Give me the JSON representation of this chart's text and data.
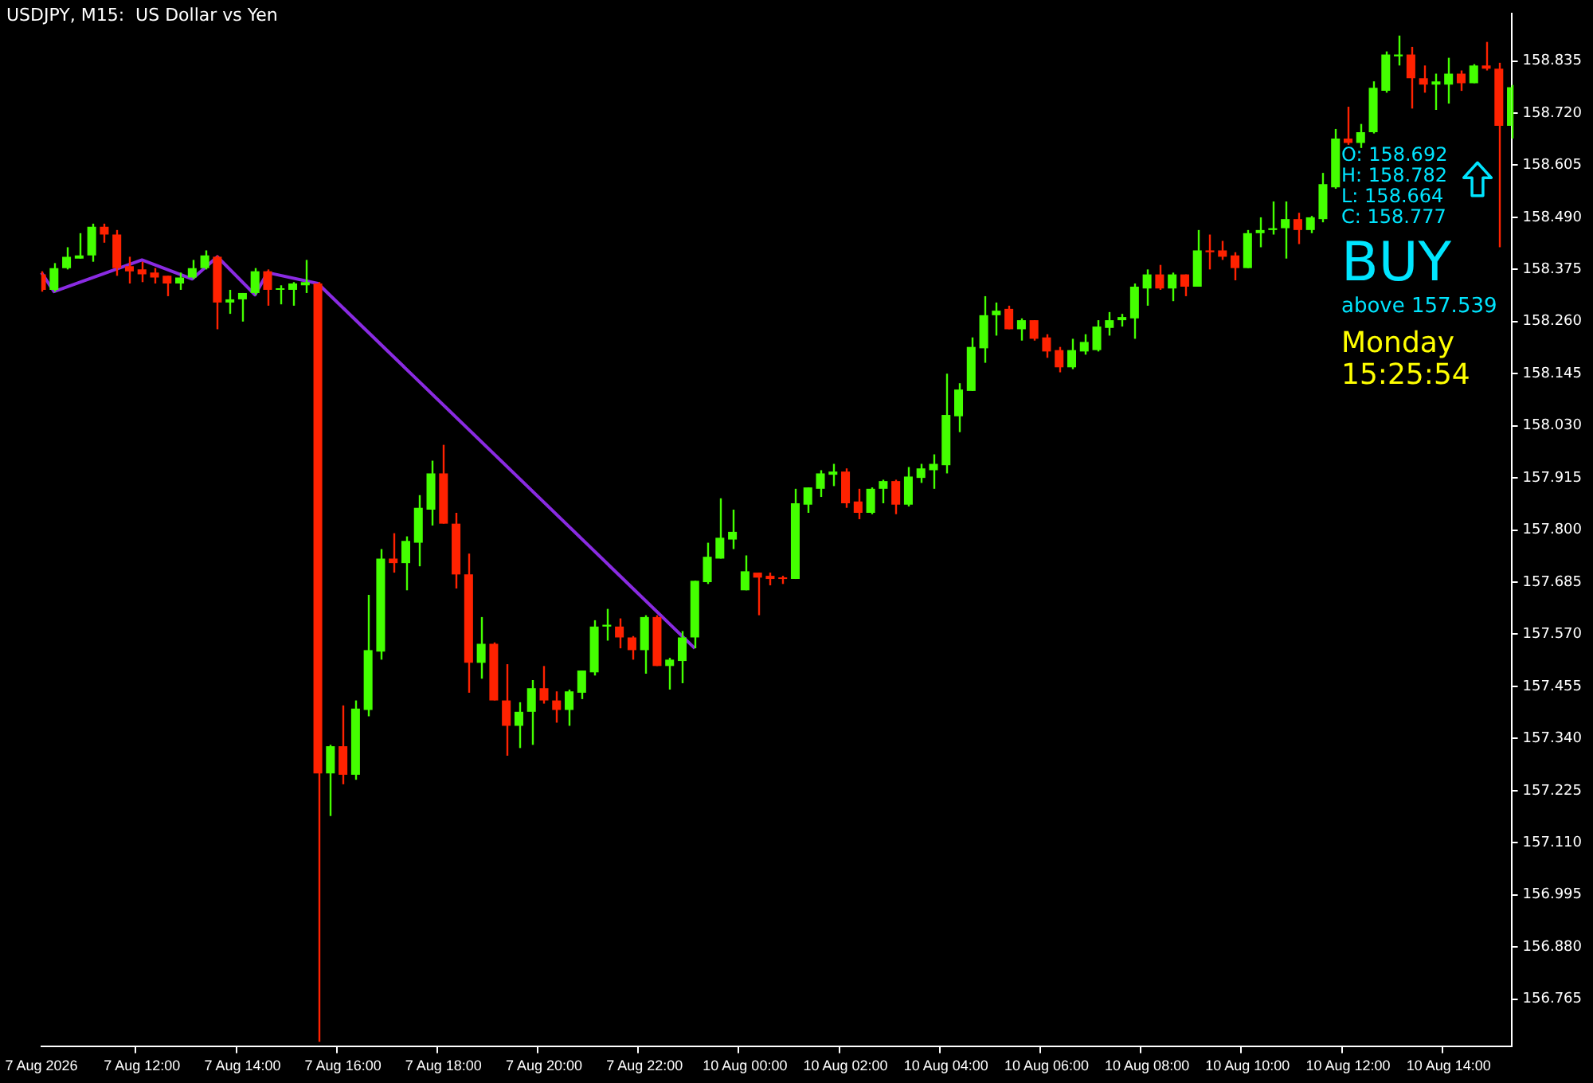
{
  "chart_data": {
    "type": "candlestick",
    "title": "USDJPY, M15:  US Dollar vs Yen",
    "categories": [
      "7 Aug 2026",
      null,
      null,
      null,
      null,
      null,
      null,
      null,
      "7 Aug 12:00",
      null,
      null,
      null,
      null,
      null,
      null,
      null,
      "7 Aug 14:00",
      null,
      null,
      null,
      null,
      null,
      null,
      null,
      "7 Aug 16:00",
      null,
      null,
      null,
      null,
      null,
      null,
      null,
      "7 Aug 18:00",
      null,
      null,
      null,
      null,
      null,
      null,
      null,
      "7 Aug 20:00",
      null,
      null,
      null,
      null,
      null,
      null,
      null,
      "7 Aug 22:00",
      null,
      null,
      null,
      null,
      null,
      null,
      null,
      "10 Aug 00:00",
      null,
      null,
      null,
      null,
      null,
      null,
      null,
      "10 Aug 02:00",
      null,
      null,
      null,
      null,
      null,
      null,
      null,
      "10 Aug 04:00",
      null,
      null,
      null,
      null,
      null,
      null,
      null,
      "10 Aug 06:00",
      null,
      null,
      null,
      null,
      null,
      null,
      null,
      "10 Aug 08:00",
      null,
      null,
      null,
      null,
      null,
      null,
      null,
      "10 Aug 10:00",
      null,
      null,
      null,
      null,
      null,
      null,
      null,
      "10 Aug 12:00",
      null,
      null,
      null,
      null,
      null,
      null,
      null,
      "10 Aug 14:00",
      null,
      null,
      null,
      null,
      null
    ],
    "ohlc": [
      [
        158.364,
        158.371,
        158.326,
        158.33
      ],
      [
        158.33,
        158.389,
        158.326,
        158.378
      ],
      [
        158.378,
        158.424,
        158.375,
        158.403
      ],
      [
        158.399,
        158.455,
        158.399,
        158.406
      ],
      [
        158.406,
        158.476,
        158.392,
        158.469
      ],
      [
        158.469,
        158.476,
        158.434,
        158.452
      ],
      [
        158.452,
        158.462,
        158.361,
        158.378
      ],
      [
        158.382,
        158.403,
        158.344,
        158.371
      ],
      [
        158.375,
        158.392,
        158.347,
        158.364
      ],
      [
        158.368,
        158.378,
        158.344,
        158.357
      ],
      [
        158.361,
        158.361,
        158.316,
        158.344
      ],
      [
        158.344,
        158.368,
        158.33,
        158.357
      ],
      [
        158.357,
        158.396,
        158.354,
        158.378
      ],
      [
        158.378,
        158.417,
        158.375,
        158.406
      ],
      [
        158.403,
        158.406,
        158.243,
        158.302
      ],
      [
        158.302,
        158.33,
        158.277,
        158.309
      ],
      [
        158.309,
        158.323,
        158.26,
        158.323
      ],
      [
        158.323,
        158.378,
        158.319,
        158.371
      ],
      [
        158.371,
        158.375,
        158.295,
        158.33
      ],
      [
        158.33,
        158.34,
        158.298,
        158.333
      ],
      [
        158.33,
        158.347,
        158.295,
        158.344
      ],
      [
        158.34,
        158.396,
        158.323,
        158.347
      ],
      [
        158.344,
        158.347,
        156.671,
        157.263
      ],
      [
        157.263,
        157.326,
        157.169,
        157.323
      ],
      [
        157.323,
        157.413,
        157.239,
        157.26
      ],
      [
        157.26,
        157.424,
        157.249,
        157.406
      ],
      [
        157.403,
        157.657,
        157.389,
        157.535
      ],
      [
        157.532,
        157.758,
        157.514,
        157.737
      ],
      [
        157.737,
        157.793,
        157.706,
        157.727
      ],
      [
        157.727,
        157.786,
        157.667,
        157.776
      ],
      [
        157.772,
        157.877,
        157.72,
        157.849
      ],
      [
        157.845,
        157.953,
        157.81,
        157.925
      ],
      [
        157.925,
        157.988,
        157.814,
        157.814
      ],
      [
        157.814,
        157.838,
        157.671,
        157.702
      ],
      [
        157.702,
        157.748,
        157.441,
        157.507
      ],
      [
        157.507,
        157.608,
        157.472,
        157.549
      ],
      [
        157.549,
        157.552,
        157.424,
        157.424
      ],
      [
        157.424,
        157.504,
        157.302,
        157.368
      ],
      [
        157.368,
        157.42,
        157.319,
        157.399
      ],
      [
        157.399,
        157.469,
        157.326,
        157.451
      ],
      [
        157.451,
        157.5,
        157.417,
        157.424
      ],
      [
        157.424,
        157.444,
        157.375,
        157.403
      ],
      [
        157.403,
        157.448,
        157.368,
        157.444
      ],
      [
        157.441,
        157.49,
        157.427,
        157.49
      ],
      [
        157.486,
        157.601,
        157.479,
        157.587
      ],
      [
        157.587,
        157.626,
        157.556,
        157.591
      ],
      [
        157.587,
        157.605,
        157.539,
        157.563
      ],
      [
        157.563,
        157.566,
        157.514,
        157.535
      ],
      [
        157.535,
        157.612,
        157.483,
        157.608
      ],
      [
        157.608,
        157.612,
        157.5,
        157.5
      ],
      [
        157.5,
        157.518,
        157.448,
        157.514
      ],
      [
        157.511,
        157.577,
        157.462,
        157.563
      ],
      [
        157.563,
        157.688,
        157.539,
        157.688
      ],
      [
        157.685,
        157.772,
        157.681,
        157.741
      ],
      [
        157.737,
        157.87,
        157.737,
        157.783
      ],
      [
        157.779,
        157.845,
        157.758,
        157.796
      ],
      [
        157.667,
        157.744,
        157.667,
        157.709
      ],
      [
        157.706,
        157.706,
        157.612,
        157.695
      ],
      [
        157.699,
        157.706,
        157.678,
        157.692
      ],
      [
        157.695,
        157.699,
        157.681,
        157.692
      ],
      [
        157.692,
        157.891,
        157.692,
        157.859
      ],
      [
        157.856,
        157.894,
        157.838,
        157.894
      ],
      [
        157.891,
        157.932,
        157.873,
        157.925
      ],
      [
        157.922,
        157.946,
        157.897,
        157.929
      ],
      [
        157.929,
        157.936,
        157.849,
        157.859
      ],
      [
        157.863,
        157.891,
        157.824,
        157.838
      ],
      [
        157.838,
        157.894,
        157.835,
        157.891
      ],
      [
        157.891,
        157.911,
        157.859,
        157.908
      ],
      [
        157.908,
        157.911,
        157.835,
        157.856
      ],
      [
        157.856,
        157.939,
        157.852,
        157.918
      ],
      [
        157.915,
        157.946,
        157.904,
        157.936
      ],
      [
        157.932,
        157.967,
        157.891,
        157.946
      ],
      [
        157.943,
        158.145,
        157.925,
        158.054
      ],
      [
        158.051,
        158.124,
        158.016,
        158.11
      ],
      [
        158.107,
        158.225,
        158.107,
        158.204
      ],
      [
        158.201,
        158.316,
        158.169,
        158.274
      ],
      [
        158.274,
        158.302,
        158.229,
        158.284
      ],
      [
        158.288,
        158.295,
        158.243,
        158.243
      ],
      [
        158.243,
        158.267,
        158.218,
        158.263
      ],
      [
        158.263,
        158.263,
        158.218,
        158.222
      ],
      [
        158.225,
        158.232,
        158.18,
        158.194
      ],
      [
        158.197,
        158.204,
        158.148,
        158.159
      ],
      [
        158.159,
        158.222,
        158.155,
        158.197
      ],
      [
        158.194,
        158.232,
        158.187,
        158.215
      ],
      [
        158.197,
        158.263,
        158.194,
        158.249
      ],
      [
        158.246,
        158.281,
        158.229,
        158.263
      ],
      [
        158.263,
        158.277,
        158.249,
        158.27
      ],
      [
        158.267,
        158.344,
        158.222,
        158.337
      ],
      [
        158.333,
        158.375,
        158.295,
        158.364
      ],
      [
        158.364,
        158.385,
        158.33,
        158.333
      ],
      [
        158.333,
        158.368,
        158.305,
        158.364
      ],
      [
        158.364,
        158.364,
        158.316,
        158.337
      ],
      [
        158.337,
        158.462,
        158.337,
        158.417
      ],
      [
        158.417,
        158.452,
        158.375,
        158.413
      ],
      [
        158.417,
        158.438,
        158.396,
        158.403
      ],
      [
        158.406,
        158.413,
        158.351,
        158.378
      ],
      [
        158.378,
        158.462,
        158.378,
        158.455
      ],
      [
        158.455,
        158.49,
        158.424,
        158.462
      ],
      [
        158.462,
        158.525,
        158.452,
        158.466
      ],
      [
        158.466,
        158.525,
        158.399,
        158.486
      ],
      [
        158.486,
        158.5,
        158.431,
        158.462
      ],
      [
        158.462,
        158.493,
        158.455,
        158.49
      ],
      [
        158.486,
        158.588,
        158.479,
        158.563
      ],
      [
        158.556,
        158.685,
        158.553,
        158.664
      ],
      [
        158.664,
        158.734,
        158.65,
        158.654
      ],
      [
        158.654,
        158.696,
        158.643,
        158.678
      ],
      [
        158.678,
        158.79,
        158.675,
        158.776
      ],
      [
        158.769,
        158.856,
        158.765,
        158.849
      ],
      [
        158.845,
        158.891,
        158.825,
        158.849
      ],
      [
        158.849,
        158.866,
        158.73,
        158.797
      ],
      [
        158.797,
        158.825,
        158.765,
        158.783
      ],
      [
        158.783,
        158.807,
        158.727,
        158.79
      ],
      [
        158.783,
        158.842,
        158.741,
        158.807
      ],
      [
        158.807,
        158.814,
        158.769,
        158.786
      ],
      [
        158.786,
        158.828,
        158.786,
        158.825
      ],
      [
        158.825,
        158.877,
        158.814,
        158.818
      ],
      [
        158.818,
        158.831,
        158.424,
        158.692
      ],
      [
        158.692,
        158.782,
        158.664,
        158.777
      ]
    ],
    "colors": [
      "#ff2200",
      "#44ff00",
      "#44ff00",
      "#44ff00",
      "#44ff00",
      "#ff2200",
      "#ff2200",
      "#ff2200",
      "#ff2200",
      "#ff2200",
      "#ff2200",
      "#44ff00",
      "#44ff00",
      "#44ff00",
      "#ff2200",
      "#44ff00",
      "#44ff00",
      "#44ff00",
      "#ff2200",
      "#44ff00",
      "#44ff00",
      "#44ff00",
      "#ff2200",
      "#44ff00",
      "#ff2200",
      "#44ff00",
      "#44ff00",
      "#44ff00",
      "#ff2200",
      "#44ff00",
      "#44ff00",
      "#44ff00",
      "#ff2200",
      "#ff2200",
      "#ff2200",
      "#44ff00",
      "#ff2200",
      "#ff2200",
      "#44ff00",
      "#44ff00",
      "#ff2200",
      "#ff2200",
      "#44ff00",
      "#44ff00",
      "#44ff00",
      "#44ff00",
      "#ff2200",
      "#ff2200",
      "#44ff00",
      "#ff2200",
      "#44ff00",
      "#44ff00",
      "#44ff00",
      "#44ff00",
      "#44ff00",
      "#44ff00",
      "#44ff00",
      "#ff2200",
      "#ff2200",
      "#ff2200",
      "#44ff00",
      "#44ff00",
      "#44ff00",
      "#44ff00",
      "#ff2200",
      "#ff2200",
      "#44ff00",
      "#44ff00",
      "#ff2200",
      "#44ff00",
      "#44ff00",
      "#44ff00",
      "#44ff00",
      "#44ff00",
      "#44ff00",
      "#44ff00",
      "#44ff00",
      "#ff2200",
      "#44ff00",
      "#ff2200",
      "#ff2200",
      "#ff2200",
      "#44ff00",
      "#44ff00",
      "#44ff00",
      "#44ff00",
      "#44ff00",
      "#44ff00",
      "#44ff00",
      "#ff2200",
      "#44ff00",
      "#ff2200",
      "#44ff00",
      "#ff2200",
      "#ff2200",
      "#ff2200",
      "#44ff00",
      "#44ff00",
      "#44ff00",
      "#44ff00",
      "#ff2200",
      "#44ff00",
      "#44ff00",
      "#44ff00",
      "#ff2200",
      "#44ff00",
      "#44ff00",
      "#44ff00",
      "#44ff00",
      "#ff2200",
      "#ff2200",
      "#44ff00",
      "#44ff00",
      "#ff2200",
      "#44ff00",
      "#ff2200",
      "#ff2200",
      "#44ff00"
    ],
    "series": [
      {
        "type": "line",
        "color": "#8a2be2",
        "values": [
          158.368,
          158.326,
          null,
          null,
          null,
          null,
          null,
          null,
          158.396,
          null,
          null,
          null,
          158.354,
          null,
          158.403,
          null,
          null,
          158.319,
          158.368,
          null,
          null,
          null,
          158.344,
          null,
          null,
          null,
          null,
          null,
          null,
          null,
          null,
          null,
          null,
          null,
          null,
          null,
          null,
          null,
          null,
          null,
          null,
          null,
          null,
          null,
          null,
          null,
          null,
          null,
          null,
          null,
          null,
          null,
          157.539,
          null,
          null,
          null,
          null,
          null,
          null,
          null,
          null,
          null,
          null,
          null,
          null,
          null,
          null,
          null,
          null,
          null,
          null,
          null,
          null,
          null,
          null,
          null,
          null,
          null,
          null,
          null,
          null,
          null,
          null,
          null,
          null,
          null,
          null,
          null,
          null,
          null,
          null,
          null,
          null,
          null,
          null,
          null,
          null,
          null,
          null,
          null,
          null,
          null,
          null,
          null,
          null,
          null,
          null,
          null,
          null,
          null,
          null,
          null,
          null,
          null,
          null,
          null,
          null,
          null
        ]
      }
    ],
    "ylim": [
      156.66,
      158.94
    ],
    "yticks": [
      156.765,
      {
        "value": 156.88,
        "label": "156.880"
      },
      156.995,
      {
        "value": 157.11,
        "label": "157.110"
      },
      157.225,
      {
        "value": 157.34,
        "label": "157.340"
      },
      157.455,
      {
        "value": 157.57,
        "label": "157.570"
      },
      157.685,
      {
        "value": 157.8,
        "label": "157.800"
      },
      157.915,
      {
        "value": 158.03,
        "label": "158.030"
      },
      158.145,
      {
        "value": 158.26,
        "label": "158.260"
      },
      158.375,
      {
        "value": 158.49,
        "label": "158.490"
      },
      158.605,
      {
        "value": 158.72,
        "label": "158.720"
      },
      158.835
    ],
    "grid": false,
    "legend": false,
    "marker": "none",
    "annotations": [
      "O: 158.692",
      "H: 158.782",
      "L: 158.664",
      "C: 158.777",
      "BUY",
      "above 157.539",
      "Monday",
      "15:25:54"
    ]
  }
}
